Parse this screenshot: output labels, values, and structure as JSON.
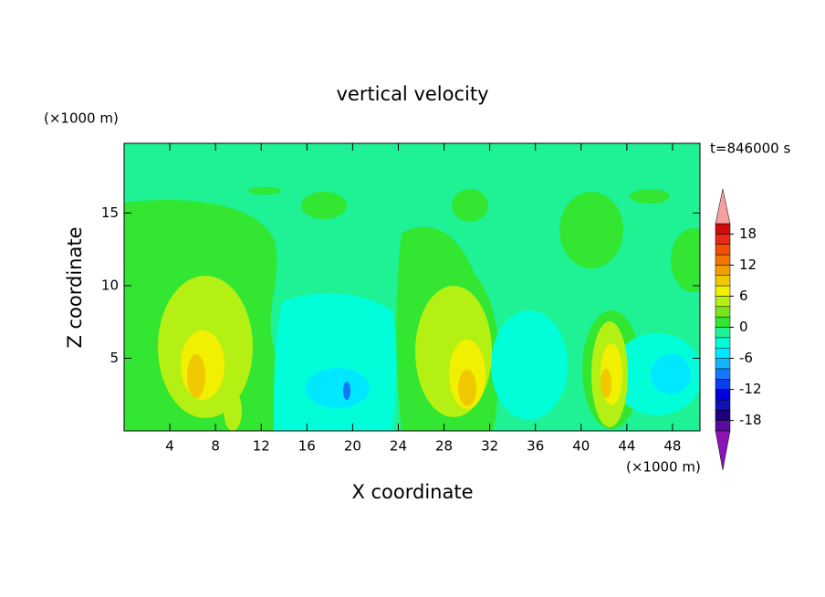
{
  "chart_data": {
    "type": "contour",
    "title": "vertical velocity",
    "x_label": "X coordinate",
    "y_label": "Z coordinate",
    "x_unit": "(×1000 m)",
    "y_unit": "(×1000 m)",
    "annotation": "t=846000 s",
    "xlim": [
      0,
      50.4
    ],
    "ylim": [
      0,
      19.8
    ],
    "xticks": [
      4,
      8,
      12,
      16,
      20,
      24,
      28,
      32,
      36,
      40,
      44,
      48
    ],
    "yticks": [
      5,
      10,
      15
    ],
    "colorbar": {
      "clim": [
        -20,
        20
      ],
      "ticks": [
        18,
        12,
        6,
        0,
        -6,
        -12,
        -18
      ],
      "colors": [
        "#5a0ca0",
        "#1c0080",
        "#1010b4",
        "#0000dc",
        "#0a3cf0",
        "#1478ff",
        "#14b4ff",
        "#00e8ff",
        "#00ffd8",
        "#1ef294",
        "#32e632",
        "#78e61e",
        "#b4f014",
        "#f0f000",
        "#f0c800",
        "#f0a000",
        "#f07800",
        "#f05000",
        "#e82814",
        "#d20a0a"
      ],
      "extend_low_color": "#8c14b4",
      "extend_high_color": "#f4a0a0"
    }
  }
}
